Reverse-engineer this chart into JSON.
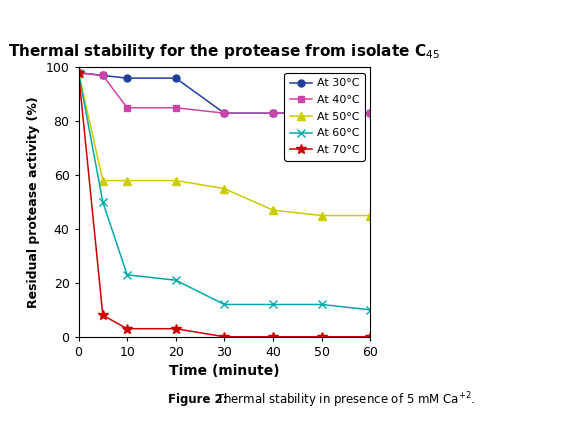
{
  "title": "Thermal stability for the protease from isolate C$_{45}$",
  "xlabel": "Time (minute)",
  "ylabel": "Residual protease activity (%)",
  "xlim": [
    0,
    60
  ],
  "ylim": [
    0,
    100
  ],
  "xticks": [
    0,
    10,
    20,
    30,
    40,
    50,
    60
  ],
  "yticks": [
    0,
    20,
    40,
    60,
    80,
    100
  ],
  "series": [
    {
      "label": "At 30°C",
      "color": "#1F3F99",
      "marker": "o",
      "markersize": 5,
      "x": [
        0,
        5,
        10,
        20,
        30,
        40,
        50,
        60
      ],
      "y": [
        98,
        97,
        96,
        96,
        83,
        83,
        83,
        83
      ]
    },
    {
      "label": "At 40°C",
      "color": "#CC44AA",
      "marker": "s",
      "markersize": 5,
      "x": [
        0,
        5,
        10,
        20,
        30,
        40,
        50,
        60
      ],
      "y": [
        98,
        97,
        85,
        85,
        83,
        83,
        83,
        83
      ]
    },
    {
      "label": "At 50°C",
      "color": "#CCCC00",
      "marker": "^",
      "markersize": 6,
      "x": [
        0,
        5,
        10,
        20,
        30,
        40,
        50,
        60
      ],
      "y": [
        98,
        58,
        58,
        58,
        55,
        47,
        45,
        45
      ]
    },
    {
      "label": "At 60°C",
      "color": "#00AAAA",
      "marker": "x",
      "markersize": 6,
      "x": [
        0,
        5,
        10,
        20,
        30,
        40,
        50,
        60
      ],
      "y": [
        98,
        50,
        23,
        21,
        12,
        12,
        12,
        10
      ]
    },
    {
      "label": "At 70°C",
      "color": "#CC0000",
      "marker": "*",
      "markersize": 7,
      "x": [
        0,
        5,
        10,
        20,
        30,
        40,
        50,
        60
      ],
      "y": [
        98,
        8,
        3,
        3,
        0,
        0,
        0,
        0
      ]
    }
  ],
  "background_color": "#ffffff",
  "plot_bg": "#ffffff",
  "border_color": "#cccccc",
  "figsize": [
    5.61,
    4.21
  ],
  "dpi": 100,
  "title_fontsize": 11,
  "axis_label_fontsize": 10,
  "tick_fontsize": 9,
  "legend_fontsize": 8,
  "caption_fontsize": 8.5
}
